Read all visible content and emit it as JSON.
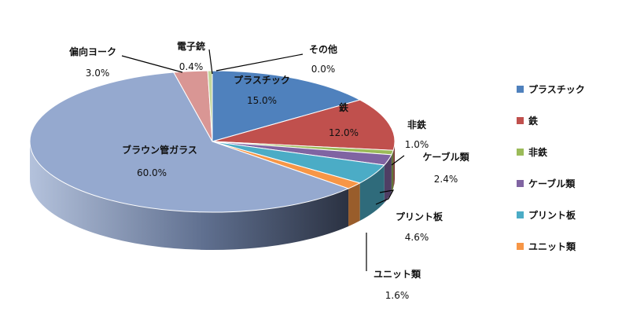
{
  "chart_data": {
    "type": "pie",
    "style": "3d",
    "legend_position": "right",
    "categories": [
      "プラスチック",
      "鉄",
      "非鉄",
      "ケーブル類",
      "プリント板",
      "ユニット類",
      "ブラウン管ガラス",
      "偏向ヨーク",
      "電子銃",
      "その他"
    ],
    "values": [
      15.0,
      12.0,
      1.0,
      2.4,
      4.6,
      1.6,
      60.0,
      3.0,
      0.4,
      0.0
    ],
    "value_labels": [
      "15.0%",
      "12.0%",
      "1.0%",
      "2.4%",
      "4.6%",
      "1.6%",
      "60.0%",
      "3.0%",
      "0.4%",
      "0.0%"
    ],
    "colors": [
      "#4f81bd",
      "#c0504d",
      "#9bbb59",
      "#8064a2",
      "#4bacc6",
      "#f79646",
      "#95a9cf",
      "#d99694",
      "#c3d69b",
      "#b7b7b7"
    ],
    "legend": [
      "プラスチック",
      "鉄",
      "非鉄",
      "ケーブル類",
      "プリント板",
      "ユニット類"
    ]
  }
}
